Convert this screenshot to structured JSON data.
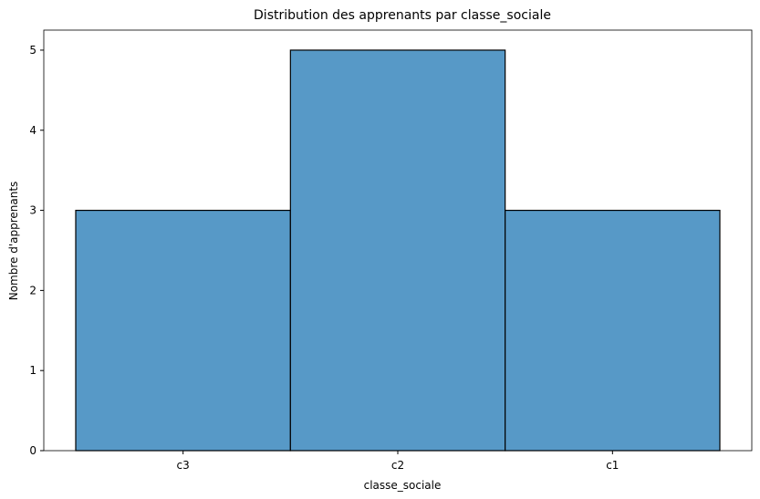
{
  "chart_data": {
    "type": "bar",
    "title": "Distribution des apprenants par classe_sociale",
    "xlabel": "classe_sociale",
    "ylabel": "Nombre d'apprenants",
    "categories": [
      "c3",
      "c2",
      "c1"
    ],
    "values": [
      3,
      5,
      3
    ],
    "ylim": [
      0,
      5.25
    ],
    "yticks": [
      0,
      1,
      2,
      3,
      4,
      5
    ],
    "grid": false,
    "legend": "none",
    "colors": {
      "bar_fill": "#5799c7",
      "bar_edge": "#000000",
      "axis": "#000000"
    }
  }
}
